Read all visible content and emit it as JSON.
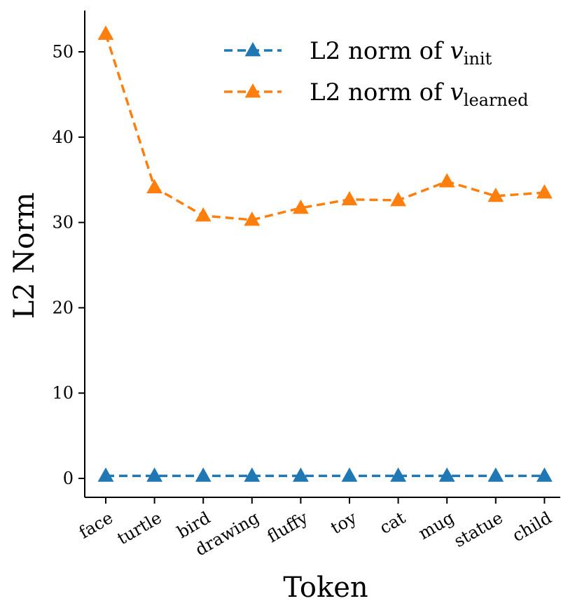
{
  "chart_data": {
    "type": "line",
    "title": "",
    "xlabel": "Token",
    "ylabel": "L2 Norm",
    "categories": [
      "face",
      "turtle",
      "bird",
      "drawing",
      "fluffy",
      "toy",
      "cat",
      "mug",
      "statue",
      "child"
    ],
    "ylim": [
      -2.2,
      55
    ],
    "yticks": [
      0,
      10,
      20,
      30,
      40,
      50
    ],
    "ytick_labels": [
      "0",
      "10",
      "20",
      "30",
      "40",
      "50"
    ],
    "grid": false,
    "legend_position": "top-right",
    "series": [
      {
        "name": "L2 norm of v_init",
        "legend_main": "L2 norm of ",
        "legend_var": "v",
        "legend_sub": "init",
        "color": "#1f77b4",
        "line_style": "dashed",
        "marker": "triangle",
        "values": [
          0.3,
          0.3,
          0.3,
          0.3,
          0.3,
          0.3,
          0.3,
          0.3,
          0.3,
          0.3
        ]
      },
      {
        "name": "L2 norm of v_learned",
        "legend_main": "L2 norm of ",
        "legend_var": "v",
        "legend_sub": "learned",
        "color": "#ff7f0e",
        "line_style": "dashed",
        "marker": "triangle",
        "values": [
          52.1,
          34.1,
          30.8,
          30.3,
          31.7,
          32.7,
          32.6,
          34.8,
          33.1,
          33.5
        ]
      }
    ]
  }
}
